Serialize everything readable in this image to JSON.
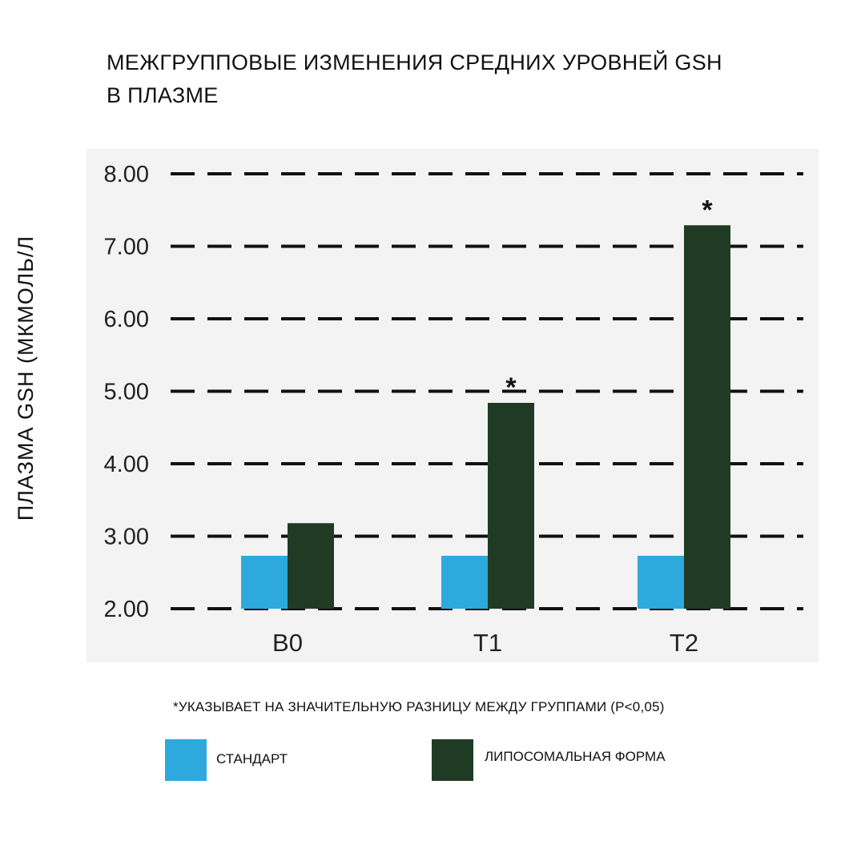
{
  "title_line1": "МЕЖГРУППОВЫЕ ИЗМЕНЕНИЯ СРЕДНИХ УРОВНЕЙ GSH",
  "title_line2": "В ПЛАЗМЕ",
  "footnote": "*УКАЗЫВАЕТ НА ЗНАЧИТЕЛЬНУЮ РАЗНИЦУ МЕЖДУ ГРУППАМИ (P<0,05)",
  "legend": [
    {
      "label": "СТАНДАРТ",
      "color": "#2ea9dd"
    },
    {
      "label": "ЛИПОСОМАЛЬНАЯ ФОРМА",
      "color": "#203b24"
    }
  ],
  "chart_data": {
    "type": "bar",
    "title": "МЕЖГРУППОВЫЕ ИЗМЕНЕНИЯ СРЕДНИХ УРОВНЕЙ GSH В ПЛАЗМЕ",
    "xlabel": "",
    "ylabel": "ПЛАЗМА  GSH (МКМОЛЬ/Л",
    "categories": [
      "B0",
      "T1",
      "T2"
    ],
    "series": [
      {
        "name": "СТАНДАРТ",
        "color": "#2ea9dd",
        "values": [
          2.73,
          2.73,
          2.73
        ]
      },
      {
        "name": "ЛИПОСОМАЛЬНАЯ ФОРМА",
        "color": "#203b24",
        "values": [
          3.18,
          4.84,
          7.29
        ]
      }
    ],
    "significance": [
      {
        "category": "B0",
        "series": "ЛИПОСОМАЛЬНАЯ ФОРМА",
        "marker": ""
      },
      {
        "category": "T1",
        "series": "ЛИПОСОМАЛЬНАЯ ФОРМА",
        "marker": "*"
      },
      {
        "category": "T2",
        "series": "ЛИПОСОМАЛЬНАЯ ФОРМА",
        "marker": "*"
      }
    ],
    "yticks": [
      "2.00",
      "3.00",
      "4.00",
      "5.00",
      "6.00",
      "7.00",
      "8.00"
    ],
    "ylim": [
      2,
      8
    ],
    "grid": true,
    "grid_style": "dashed"
  }
}
